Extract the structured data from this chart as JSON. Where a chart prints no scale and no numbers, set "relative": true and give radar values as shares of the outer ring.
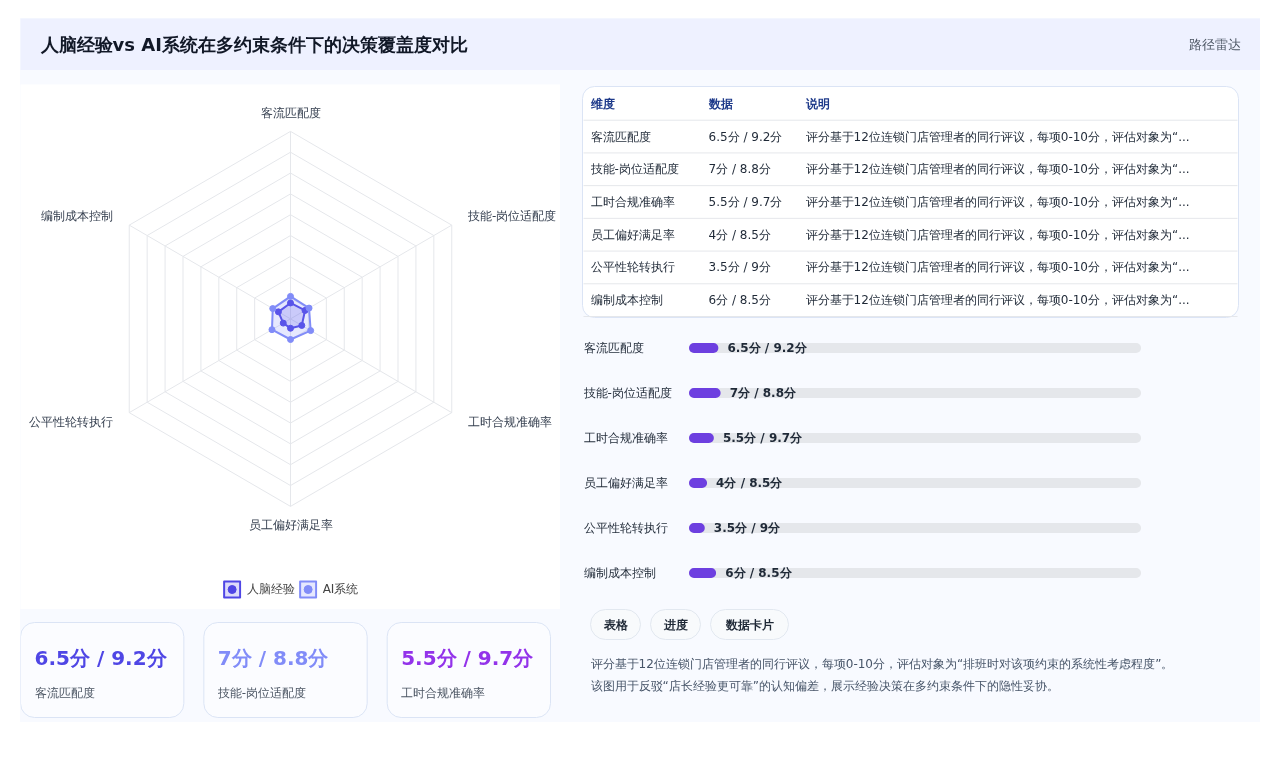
{
  "chart_data": [
    {
      "type": "other",
      "title": "人脑经验vs AI系统在多约束条件下的决策覆盖度对比",
      "annotations": [
        "路径雷达"
      ]
    },
    {
      "type": "radar",
      "relative": true,
      "legend": "bottom",
      "marker": "circle",
      "categories": [
        "客流匹配度",
        "技能-岗位适配度",
        "工时合规准确率",
        "员工偏好满足率",
        "公平性轮转执行",
        "编制成本控制"
      ],
      "series": [
        {
          "name": "人脑经验",
          "color": "#4f46e5",
          "values": [
            0.085,
            0.09,
            0.07,
            0.05,
            0.045,
            0.075
          ]
        },
        {
          "name": "AI系统",
          "color": "#818cf8",
          "values": [
            0.12,
            0.115,
            0.125,
            0.11,
            0.115,
            0.11
          ]
        }
      ]
    },
    {
      "type": "other",
      "colors": [
        "#4f46e5",
        "#818cf8",
        "#9333ea"
      ],
      "annotations": [
        "6.5分 / 9.2分",
        "客流匹配度",
        "7分 / 8.8分",
        "技能-岗位适配度",
        "5.5分 / 9.7分",
        "工时合规准确率"
      ]
    },
    {
      "type": "other",
      "annotations": [
        "维度",
        "数据",
        "说明",
        "客流匹配度",
        "6.5分 / 9.2分",
        "评分基于12位连锁门店管理者的同行评议，每项0-10分，评估对象为“...",
        "技能-岗位适配度",
        "7分 / 8.8分",
        "评分基于12位连锁门店管理者的同行评议，每项0-10分，评估对象为“...",
        "工时合规准确率",
        "5.5分 / 9.7分",
        "评分基于12位连锁门店管理者的同行评议，每项0-10分，评估对象为“...",
        "员工偏好满足率",
        "4分 / 8.5分",
        "评分基于12位连锁门店管理者的同行评议，每项0-10分，评估对象为“...",
        "公平性轮转执行",
        "3.5分 / 9分",
        "评分基于12位连锁门店管理者的同行评议，每项0-10分，评估对象为“...",
        "编制成本控制",
        "6分 / 8.5分",
        "评分基于12位连锁门店管理者的同行评议，每项0-10分，评估对象为“..."
      ]
    },
    {
      "type": "bar",
      "orientation": "horizontal",
      "xlim": [
        0,
        100
      ],
      "color": "#6d3fe0",
      "categories": [
        "客流匹配度",
        "技能-岗位适配度",
        "工时合规准确率",
        "员工偏好满足率",
        "公平性轮转执行",
        "编制成本控制"
      ],
      "values": [
        6.5,
        7,
        5.5,
        4,
        3.5,
        6
      ],
      "value_labels": [
        "6.5分 / 9.2分",
        "7分 / 8.8分",
        "5.5分 / 9.7分",
        "4分 / 8.5分",
        "3.5分 / 9分",
        "6分 / 8.5分"
      ]
    },
    {
      "type": "other",
      "annotations": [
        "表格",
        "进度",
        "数据卡片",
        "评分基于12位连锁门店管理者的同行评议，每项0-10分，评估对象为“排班时对该项约束的系统性考虑程度”。该图用于反驳“店长经验更可靠”的认知偏差，展示经验决策在多约束条件下的隐性妥协。"
      ]
    }
  ]
}
